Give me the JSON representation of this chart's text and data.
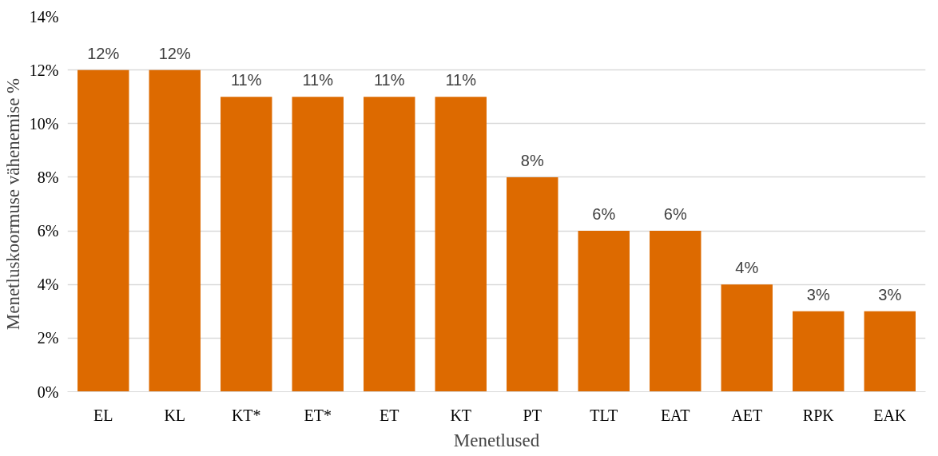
{
  "chart_data": {
    "type": "bar",
    "xlabel": "Menetlused",
    "ylabel": "Menetluskoormuse vähenemise %",
    "categories": [
      "EL",
      "KL",
      "KT*",
      "ET*",
      "ET",
      "KT",
      "PT",
      "TLT",
      "EAT",
      "AET",
      "RPK",
      "EAK"
    ],
    "values": [
      12,
      12,
      11,
      11,
      11,
      11,
      8,
      6,
      6,
      4,
      3,
      3
    ],
    "value_labels": [
      "12%",
      "12%",
      "11%",
      "11%",
      "11%",
      "11%",
      "8%",
      "6%",
      "6%",
      "4%",
      "3%",
      "3%"
    ],
    "color": "#dd6a00",
    "ylim": [
      0,
      14
    ],
    "yticks": [
      {
        "value": 0,
        "label": "0%"
      },
      {
        "value": 2,
        "label": "2%"
      },
      {
        "value": 4,
        "label": "4%"
      },
      {
        "value": 6,
        "label": "6%"
      },
      {
        "value": 8,
        "label": "8%"
      },
      {
        "value": 10,
        "label": "10%"
      },
      {
        "value": 12,
        "label": "12%"
      },
      {
        "value": 14,
        "label": "14%"
      }
    ],
    "grid": "y"
  }
}
